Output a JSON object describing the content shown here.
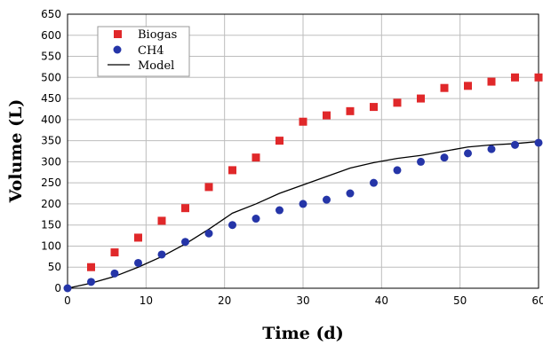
{
  "chart_data": {
    "type": "scatter",
    "title": "",
    "xlabel": "Time (d)",
    "ylabel": "Volume (L)",
    "xlim": [
      0,
      60
    ],
    "ylim": [
      0,
      650
    ],
    "xticks": [
      0,
      10,
      20,
      30,
      40,
      50,
      60
    ],
    "yticks": [
      0,
      50,
      100,
      150,
      200,
      250,
      300,
      350,
      400,
      450,
      500,
      550,
      600,
      650
    ],
    "grid": true,
    "legend_position": "top-left",
    "series": [
      {
        "name": "Biogas",
        "type": "scatter",
        "marker": "square",
        "color": "#e0282a",
        "x": [
          3,
          6,
          9,
          12,
          15,
          18,
          21,
          24,
          27,
          30,
          33,
          36,
          39,
          42,
          45,
          48,
          51,
          54,
          57,
          60
        ],
        "y": [
          50,
          85,
          120,
          160,
          190,
          240,
          280,
          310,
          350,
          395,
          410,
          420,
          430,
          440,
          450,
          475,
          480,
          490,
          500,
          500
        ]
      },
      {
        "name": "CH4",
        "type": "scatter",
        "marker": "circle",
        "color": "#2535a8",
        "x": [
          0,
          3,
          6,
          9,
          12,
          15,
          18,
          21,
          24,
          27,
          30,
          33,
          36,
          39,
          42,
          45,
          48,
          51,
          54,
          57,
          60
        ],
        "y": [
          0,
          15,
          35,
          60,
          80,
          110,
          130,
          150,
          165,
          185,
          200,
          210,
          225,
          250,
          280,
          300,
          310,
          320,
          330,
          340,
          345
        ]
      },
      {
        "name": "Model",
        "type": "line",
        "color": "#000000",
        "x": [
          0,
          3,
          6,
          9,
          12,
          15,
          18,
          21,
          24,
          27,
          30,
          33,
          36,
          39,
          42,
          45,
          48,
          51,
          54,
          57,
          60
        ],
        "y": [
          0,
          12,
          28,
          50,
          75,
          105,
          140,
          178,
          200,
          225,
          245,
          265,
          285,
          298,
          308,
          315,
          325,
          335,
          340,
          343,
          348
        ]
      }
    ]
  }
}
